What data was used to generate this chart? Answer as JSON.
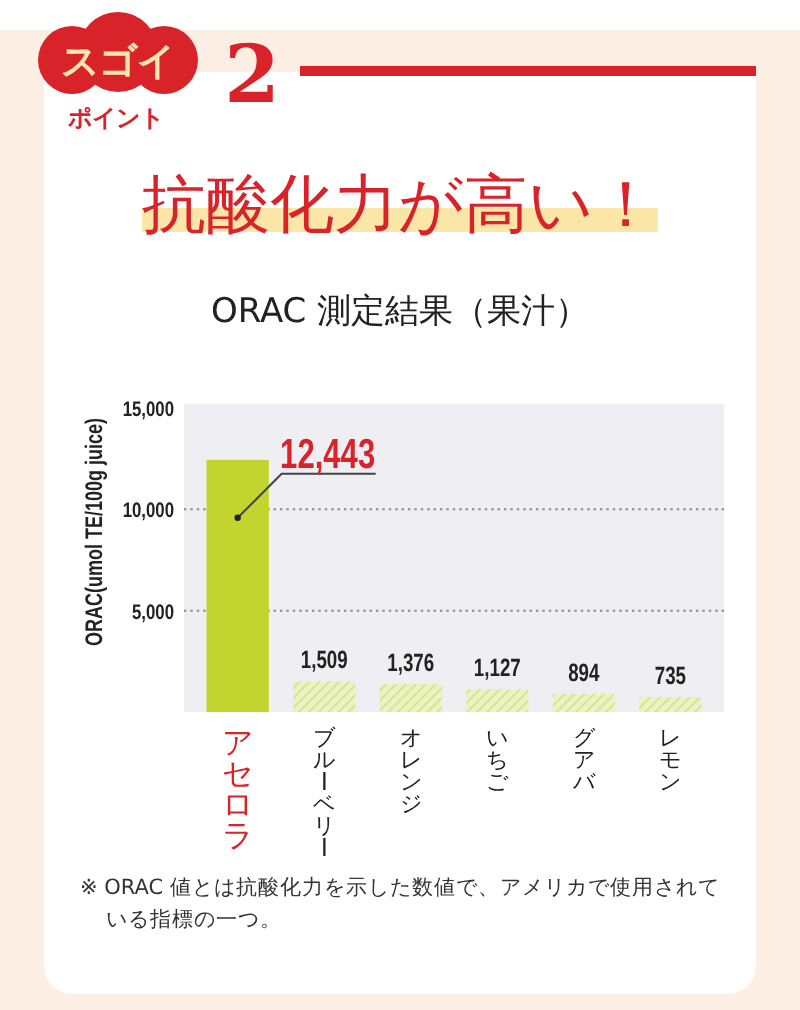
{
  "chart_data": {
    "type": "bar",
    "title": "抗酸化力が高い！",
    "subtitle": "ORAC 測定結果（果汁）",
    "ylabel": "ORAC(umol TE/100g juice)",
    "categories": [
      "アセロラ",
      "ブルーベリー",
      "オレンジ",
      "いちご",
      "グアバ",
      "レモン"
    ],
    "values": [
      12443,
      1509,
      1376,
      1127,
      894,
      735
    ],
    "colors": [
      "#c2d52e",
      "#d3e27e",
      "#d3e27e",
      "#d3e27e",
      "#d3e27e",
      "#d3e27e"
    ],
    "value_labels": [
      null,
      "1,509",
      "1,376",
      "1,127",
      "894",
      "735"
    ],
    "ylim": [
      0,
      15000
    ],
    "yticks": [
      {
        "value": 5000,
        "label": "5,000"
      },
      {
        "value": 10000,
        "label": "10,000"
      },
      {
        "value": 15000,
        "label": "15,000"
      }
    ],
    "grid": "y",
    "annotations": [
      "スゴイ",
      "ポイント",
      "2",
      {
        "text": "12,443",
        "x": "アセロラ",
        "y": 12443
      },
      "※ ORAC 値とは抗酸化力を示した数値で、アメリカで使用されている指標の一つ。"
    ]
  }
}
